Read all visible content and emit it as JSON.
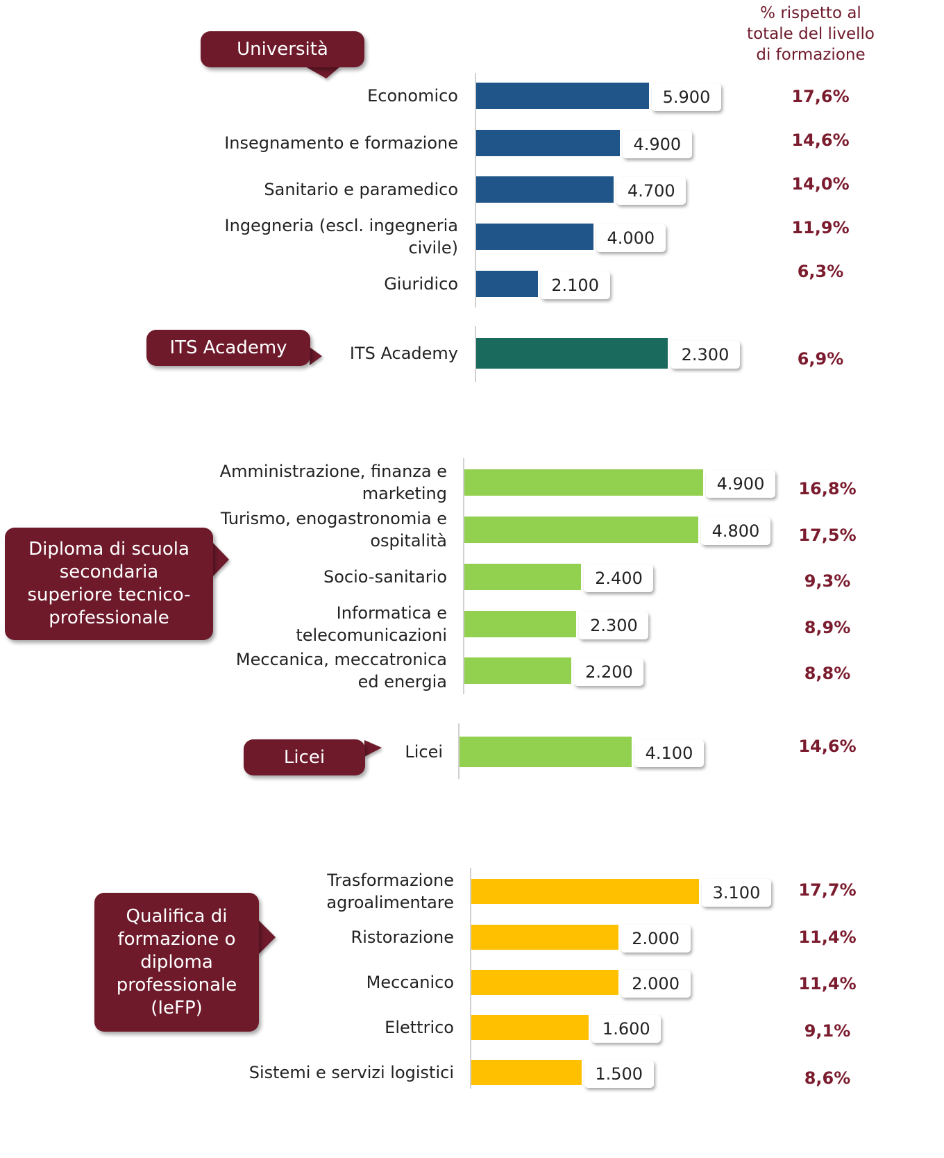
{
  "header": "% rispetto al\ntotale del livello\ndi formazione",
  "chart_data": [
    {
      "type": "bar",
      "group": "Università",
      "color": "#1f5589",
      "categories": [
        "Economico",
        "Insegnamento e formazione",
        "Sanitario e paramedico",
        "Ingegneria (escl. ingegneria\ncivile)",
        "Giuridico"
      ],
      "values": [
        5900,
        4900,
        4700,
        4000,
        2100
      ],
      "value_labels": [
        "5.900",
        "4.900",
        "4.700",
        "4.000",
        "2.100"
      ],
      "shares": [
        17.6,
        14.6,
        14.0,
        11.9,
        6.3
      ],
      "share_labels": [
        "17,6%",
        "14,6%",
        "14,0%",
        "11,9%",
        "6,3%"
      ]
    },
    {
      "type": "bar",
      "group": "ITS Academy",
      "color": "#1b6a5e",
      "categories": [
        "ITS Academy"
      ],
      "values": [
        2300
      ],
      "value_labels": [
        "2.300"
      ],
      "shares": [
        6.9
      ],
      "share_labels": [
        "6,9%"
      ]
    },
    {
      "type": "bar",
      "group": "Diploma di scuola secondaria superiore tecnico-professionale",
      "color": "#92d050",
      "categories": [
        "Amministrazione, finanza e\nmarketing",
        "Turismo, enogastronomia e\nospitalità",
        "Socio-sanitario",
        "Informatica e\ntelecomunicazioni",
        "Meccanica, meccatronica\ned energia"
      ],
      "values": [
        4900,
        4800,
        2400,
        2300,
        2200
      ],
      "value_labels": [
        "4.900",
        "4.800",
        "2.400",
        "2.300",
        "2.200"
      ],
      "shares": [
        16.8,
        17.5,
        9.3,
        8.9,
        8.8
      ],
      "share_labels": [
        "16,8%",
        "17,5%",
        "9,3%",
        "8,9%",
        "8,8%"
      ]
    },
    {
      "type": "bar",
      "group": "Licei",
      "color": "#92d050",
      "categories": [
        "Licei"
      ],
      "values": [
        4100
      ],
      "value_labels": [
        "4.100"
      ],
      "shares": [
        14.6
      ],
      "share_labels": [
        "14,6%"
      ]
    },
    {
      "type": "bar",
      "group": "Qualifica di formazione o diploma professionale (IeFP)",
      "color": "#ffc000",
      "categories": [
        "Trasformazione\nagroalimentare",
        "Ristorazione",
        "Meccanico",
        "Elettrico",
        "Sistemi e servizi logistici"
      ],
      "values": [
        3100,
        2000,
        2000,
        1600,
        1500
      ],
      "value_labels": [
        "3.100",
        "2.000",
        "2.000",
        "1.600",
        "1.500"
      ],
      "shares": [
        17.7,
        11.4,
        11.4,
        9.1,
        8.6
      ],
      "share_labels": [
        "17,7%",
        "11,4%",
        "11,4%",
        "9,1%",
        "8,6%"
      ]
    }
  ]
}
